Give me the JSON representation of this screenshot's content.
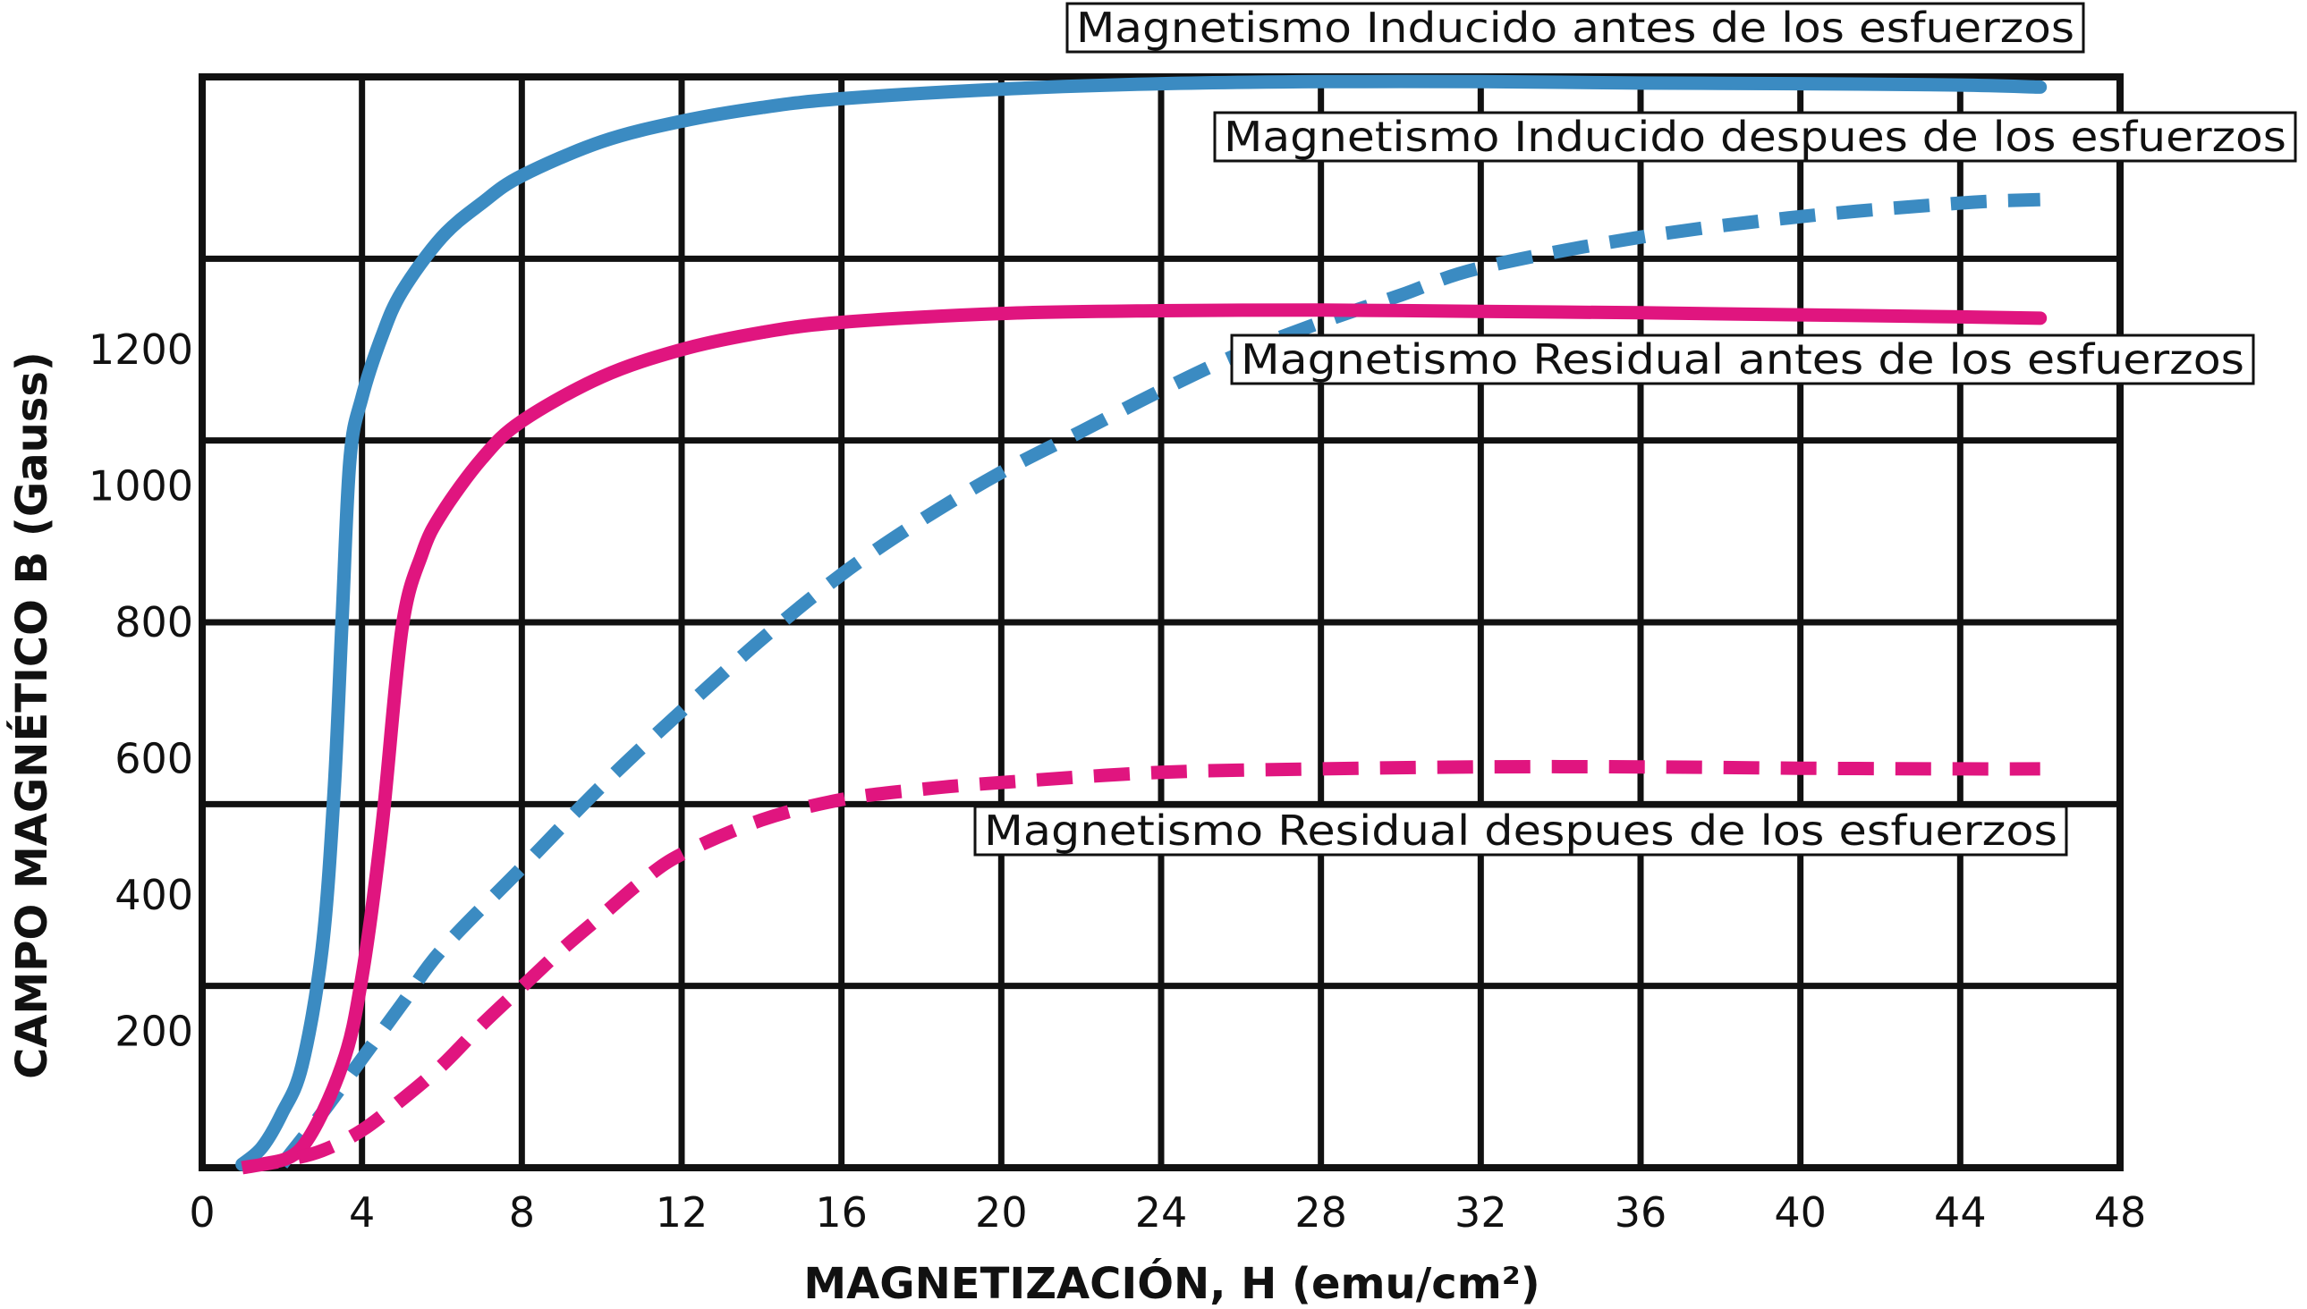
{
  "chart_data": {
    "type": "line",
    "xlabel": "MAGNETIZACIÓN, H (emu/cm²)",
    "ylabel": "CAMPO MAGNÉTICO B (Gauss)",
    "xlim": [
      0,
      48
    ],
    "ylim": [
      0,
      1600
    ],
    "x_ticks": [
      "0",
      "4",
      "8",
      "12",
      "16",
      "20",
      "24",
      "28",
      "32",
      "36",
      "40",
      "44",
      "48"
    ],
    "y_ticks": [
      {
        "value": 200,
        "label": "200"
      },
      {
        "value": 400,
        "label": "400"
      },
      {
        "value": 600,
        "label": "600"
      },
      {
        "value": 800,
        "label": "800"
      },
      {
        "value": 1000,
        "label": "1000"
      },
      {
        "value": 1200,
        "label": "1200"
      }
    ],
    "grid": true,
    "colors": {
      "blue": "#3b8bc2",
      "pink": "#e0157f",
      "grid": "#111111"
    },
    "series": [
      {
        "name": "Magnetismo Inducido antes de los esfuerzos",
        "color": "#3b8bc2",
        "dashed": false,
        "x": [
          1.0,
          1.5,
          2.0,
          2.5,
          3.0,
          3.3,
          3.5,
          3.7,
          4.0,
          4.5,
          5.0,
          6.0,
          7.0,
          8.0,
          10.0,
          12.0,
          14.0,
          16.0,
          20.0,
          24.0,
          28.0,
          32.0,
          36.0,
          40.0,
          44.0,
          46.0
        ],
        "y": [
          5,
          30,
          80,
          150,
          320,
          550,
          800,
          1040,
          1130,
          1220,
          1285,
          1365,
          1415,
          1455,
          1505,
          1535,
          1555,
          1568,
          1582,
          1590,
          1593,
          1593,
          1591,
          1590,
          1588,
          1585
        ],
        "legend": "Magnetismo Inducido antes de los esfuerzos",
        "legend_pos": "top-right"
      },
      {
        "name": "Magnetismo Inducido despues de los esfuerzos",
        "color": "#3b8bc2",
        "dashed": true,
        "x": [
          2.0,
          3.0,
          4.0,
          5.0,
          6.0,
          8.0,
          10.0,
          12.0,
          14.0,
          16.0,
          18.0,
          20.0,
          22.0,
          24.0,
          26.0,
          28.0,
          30.0,
          32.0,
          36.0,
          40.0,
          44.0,
          46.0
        ],
        "y": [
          5,
          80,
          160,
          240,
          320,
          440,
          560,
          670,
          775,
          870,
          950,
          1020,
          1080,
          1140,
          1195,
          1240,
          1280,
          1320,
          1365,
          1395,
          1415,
          1420
        ],
        "legend": "Magnetismo Inducido despues de los esfuerzos",
        "legend_pos": "upper-right"
      },
      {
        "name": "Magnetismo Residual antes de los esfuerzos",
        "color": "#e0157f",
        "dashed": false,
        "x": [
          1.5,
          2.5,
          3.5,
          4.0,
          4.5,
          5.0,
          5.5,
          6.0,
          7.0,
          8.0,
          10.0,
          12.0,
          14.0,
          16.0,
          20.0,
          24.0,
          28.0,
          32.0,
          36.0,
          40.0,
          44.0,
          46.0
        ],
        "y": [
          5,
          30,
          150,
          280,
          500,
          790,
          900,
          960,
          1040,
          1095,
          1160,
          1200,
          1225,
          1240,
          1253,
          1257,
          1258,
          1256,
          1254,
          1251,
          1248,
          1246
        ],
        "legend": "Magnetismo Residual antes de los esfuerzos",
        "legend_pos": "middle-right"
      },
      {
        "name": "Magnetismo Residual despues de los esfuerzos",
        "color": "#e0157f",
        "dashed": true,
        "x": [
          1.0,
          2.0,
          3.0,
          4.0,
          5.0,
          6.0,
          7.0,
          8.0,
          9.0,
          10.0,
          11.0,
          12.0,
          14.0,
          16.0,
          18.0,
          20.0,
          24.0,
          28.0,
          32.0,
          36.0,
          40.0,
          44.0,
          46.0
        ],
        "y": [
          0,
          10,
          25,
          55,
          100,
          150,
          210,
          265,
          320,
          370,
          420,
          460,
          510,
          540,
          555,
          565,
          580,
          585,
          588,
          588,
          586,
          585,
          585
        ],
        "legend": "Magnetismo Residual despues de los esfuerzos",
        "legend_pos": "lower-right"
      }
    ]
  }
}
